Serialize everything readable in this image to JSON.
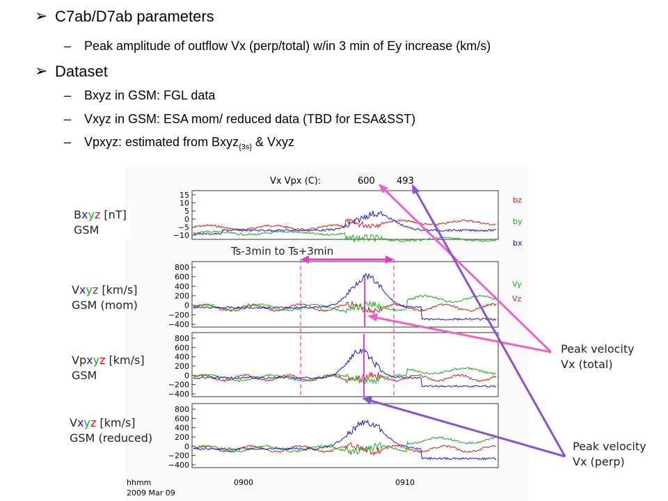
{
  "bullets": [
    {
      "title": "C7ab/D7ab parameters",
      "items": [
        "Peak amplitude of outflow Vx (perp/total) w/in 3 min of Ey increase (km/s)"
      ]
    },
    {
      "title": "Dataset",
      "items": [
        "Bxyz in GSM: FGL data",
        "Vxyz in GSM: ESA mom/ reduced data (TBD for ESA&SST)"
      ],
      "vp_item": {
        "prefix": "Vpxyz: estimated from Bxyz",
        "sub": "{3s}",
        "suffix": " & Vxyz"
      }
    }
  ],
  "panel_labels": [
    {
      "prefix": "B",
      "suffix": " [nT]",
      "line2": "GSM"
    },
    {
      "prefix": "V",
      "suffix": " [km/s]",
      "line2": "GSM (mom)"
    },
    {
      "prefix": "Vp",
      "suffix": " [km/s]",
      "line2": "GSM"
    },
    {
      "prefix": "V",
      "suffix": " [km/s]",
      "line2": "GSM (reduced)"
    }
  ],
  "xyz": {
    "x": "x",
    "y": "y",
    "z": "z"
  },
  "plot": {
    "header_label": "Vx Vpx (C):",
    "vx_value": "600",
    "vpx_value": "493",
    "window_label": "Ts-3min to Ts+3min",
    "b_ticks": [
      "15",
      "10",
      "5",
      "0",
      "−5",
      "−10"
    ],
    "v_ticks": [
      "800",
      "600",
      "400",
      "200",
      "0",
      "−200",
      "−400"
    ],
    "b_legend": [
      "bz",
      "by",
      "bx"
    ],
    "v_legend": [
      "Vy",
      "Vz"
    ],
    "time_label": "hhmm",
    "date_label": "2009 Mar 09",
    "x_ticks": [
      "0900",
      "0910"
    ]
  },
  "annotations": {
    "total": [
      "Peak velocity",
      "Vx (total)"
    ],
    "perp": [
      "Peak velocity",
      "Vx (perp)"
    ]
  },
  "colors": {
    "x": "#1a1acc",
    "y": "#1aaa1a",
    "z": "#cc1a1a",
    "pink": "#f060c8",
    "purple": "#8a4fd8",
    "window": "#e040c0",
    "magenta": "#e000e0"
  }
}
